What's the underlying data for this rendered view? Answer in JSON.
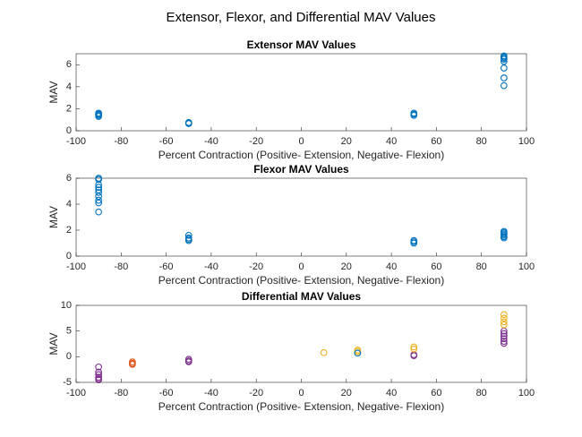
{
  "title": "Extensor, Flexor, and Differential MAV Values",
  "chart_data": [
    {
      "type": "scatter",
      "title": "Extensor MAV Values",
      "x_label": "Percent Contraction (Positive- Extension, Negative- Flexion)",
      "y_label": "MAV",
      "xlim": [
        -100,
        100
      ],
      "xticks": [
        -100,
        -80,
        -60,
        -40,
        -20,
        0,
        20,
        40,
        60,
        80,
        100
      ],
      "ylim": [
        0,
        7
      ],
      "yticks": [
        0,
        2,
        4,
        6
      ],
      "series": [
        {
          "color": "#0072BD",
          "x": [
            -90,
            -90,
            -90,
            -90,
            -90,
            -50,
            -50,
            -50,
            50,
            50,
            50,
            90,
            90,
            90,
            90,
            90,
            90,
            90,
            90
          ],
          "values": [
            1.6,
            1.5,
            1.4,
            1.3,
            1.5,
            0.7,
            0.65,
            0.75,
            1.6,
            1.5,
            1.4,
            6.8,
            6.7,
            6.6,
            6.5,
            6.3,
            5.7,
            4.8,
            4.1
          ]
        }
      ]
    },
    {
      "type": "scatter",
      "title": "Flexor MAV Values",
      "x_label": "Percent Contraction (Positive- Extension, Negative- Flexion)",
      "y_label": "MAV",
      "xlim": [
        -100,
        100
      ],
      "xticks": [
        -100,
        -80,
        -60,
        -40,
        -20,
        0,
        20,
        40,
        60,
        80,
        100
      ],
      "ylim": [
        0,
        6
      ],
      "yticks": [
        0,
        2,
        4,
        6
      ],
      "series": [
        {
          "color": "#0072BD",
          "x": [
            -90,
            -90,
            -90,
            -90,
            -90,
            -90,
            -90,
            -90,
            -90,
            -90,
            -50,
            -50,
            -50,
            -50,
            50,
            50,
            50,
            90,
            90,
            90,
            90,
            90,
            90
          ],
          "values": [
            6.0,
            5.9,
            5.5,
            5.3,
            5.1,
            4.9,
            4.6,
            4.3,
            4.1,
            3.4,
            1.6,
            1.4,
            1.3,
            1.2,
            1.2,
            1.1,
            1.0,
            1.9,
            1.8,
            1.7,
            1.6,
            1.5,
            1.4
          ]
        }
      ]
    },
    {
      "type": "scatter",
      "title": "Differential MAV Values",
      "x_label": "Percent Contraction (Positive- Extension, Negative- Flexion)",
      "y_label": "MAV",
      "xlim": [
        -100,
        100
      ],
      "xticks": [
        -100,
        -80,
        -60,
        -40,
        -20,
        0,
        20,
        40,
        60,
        80,
        100
      ],
      "ylim": [
        -5,
        10
      ],
      "yticks": [
        -5,
        0,
        5,
        10
      ],
      "series": [
        {
          "color": "#7E2F8E",
          "x": [
            -90,
            -90,
            -90,
            -90,
            -90,
            -90,
            -50,
            -50,
            -50,
            50,
            50,
            90,
            90,
            90,
            90,
            90,
            90
          ],
          "values": [
            -2,
            -3,
            -3.5,
            -4,
            -4.3,
            -4.5,
            -0.5,
            -0.8,
            -1,
            0.4,
            0.2,
            5.0,
            4.5,
            4.0,
            3.5,
            3.0,
            2.6
          ]
        },
        {
          "color": "#D95319",
          "x": [
            -75,
            -75,
            -75
          ],
          "values": [
            -1,
            -1.3,
            -1.5
          ]
        },
        {
          "color": "#EDB120",
          "x": [
            10,
            25,
            25,
            50,
            50,
            90,
            90,
            90,
            90
          ],
          "values": [
            0.8,
            1.3,
            1.0,
            1.9,
            1.5,
            8.2,
            7.5,
            6.8,
            6.2
          ]
        },
        {
          "color": "#0072BD",
          "x": [
            25
          ],
          "values": [
            0.7
          ]
        }
      ]
    }
  ]
}
